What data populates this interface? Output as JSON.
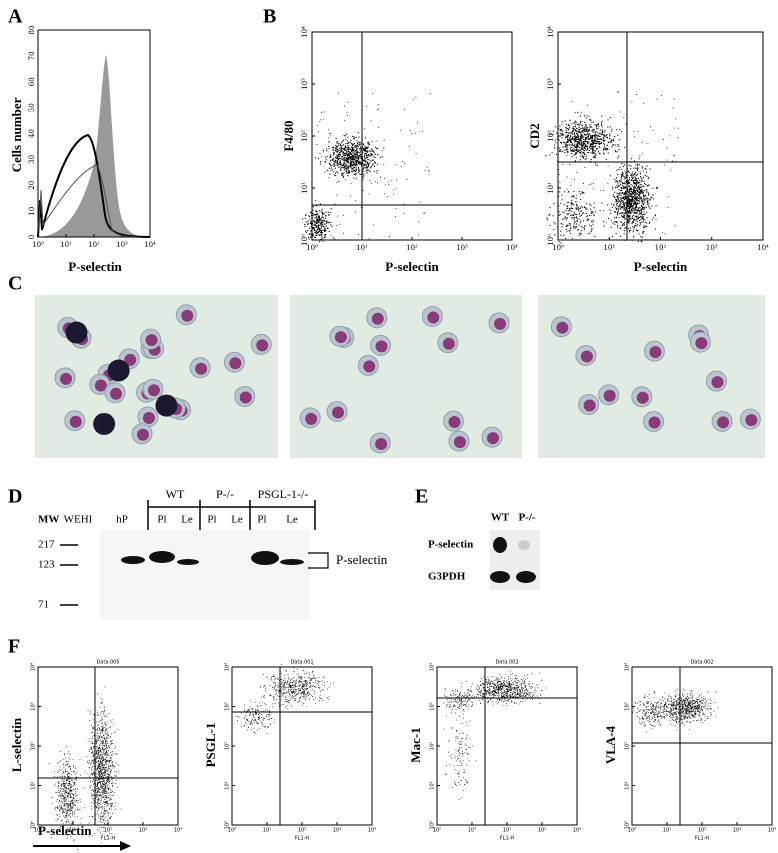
{
  "letters": [
    "A",
    "B",
    "C",
    "D",
    "E",
    "F"
  ],
  "log_ticks": [
    "10⁰",
    "10¹",
    "10²",
    "10³",
    "10⁴"
  ],
  "panel_a": {
    "y_label": "Cells number",
    "x_label": "P-selectin",
    "yticks": [
      0,
      10,
      20,
      30,
      40,
      50,
      60,
      70,
      80
    ]
  },
  "panel_b": {
    "plots": [
      {
        "y_label": "F4/80",
        "x_label": "P-selectin"
      },
      {
        "y_label": "CD2",
        "x_label": "P-selectin"
      }
    ]
  },
  "panel_d": {
    "mw_label": "MW",
    "lanes": [
      "WEHI",
      "hP",
      "Pl",
      "Le",
      "Pl",
      "Le",
      "Pl",
      "Le"
    ],
    "groups": [
      "WT",
      "P-/-",
      "PSGL-1-/-"
    ],
    "markers": [
      217,
      123,
      71
    ],
    "band_label": "P-selectin"
  },
  "panel_e": {
    "columns": [
      "WT",
      "P-/-"
    ],
    "rows": [
      "P-selectin",
      "G3PDH"
    ]
  },
  "panel_f": {
    "plots": [
      {
        "title": "Data.005",
        "y_label": "L-selectin"
      },
      {
        "title": "Data.001",
        "y_label": "PSGL-1"
      },
      {
        "title": "Data.002",
        "y_label": "Mac-1"
      },
      {
        "title": "Data.002",
        "y_label": "VLA-4"
      }
    ],
    "x_axis": "FL1-H",
    "x_label": "P-selectin"
  }
}
